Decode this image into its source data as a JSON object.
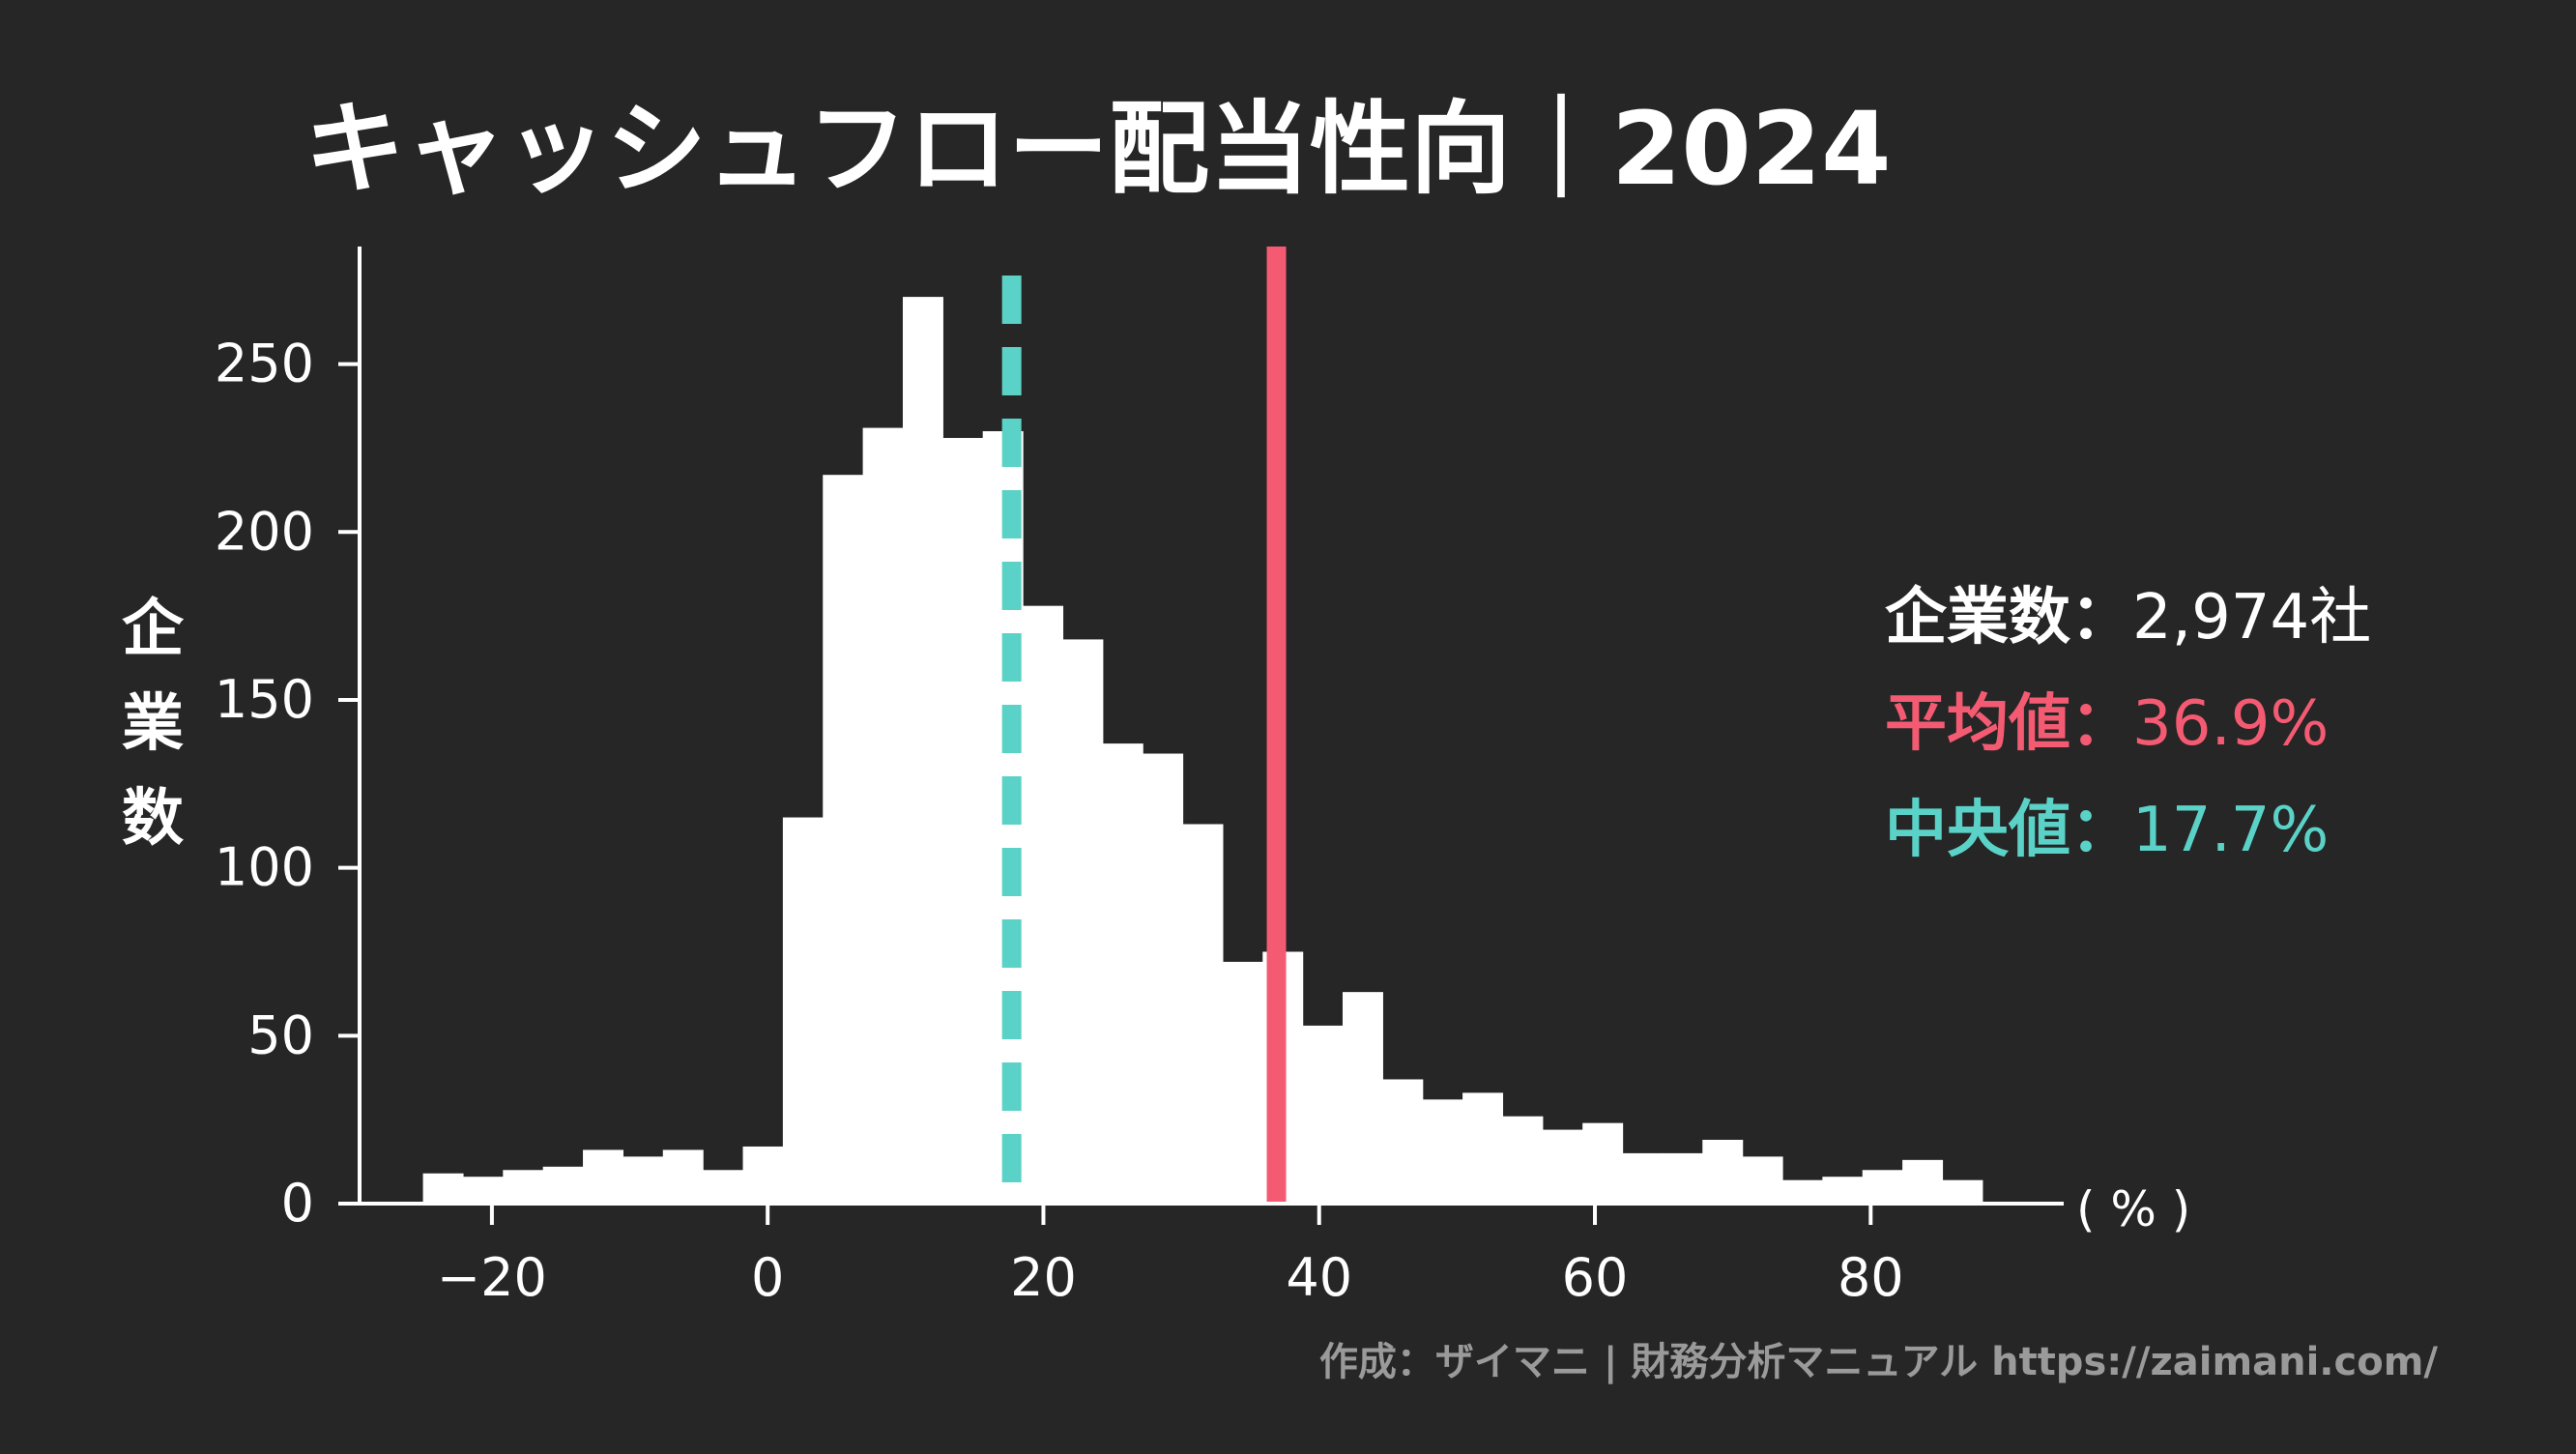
{
  "chart_data": {
    "type": "bar",
    "title": "キャッシュフロー配当性向｜2024",
    "xlabel": "",
    "x_unit_label": "( % )",
    "ylabel": "企業数",
    "xlim": [
      -31,
      94
    ],
    "ylim": [
      0,
      285
    ],
    "x_ticks": [
      -20,
      0,
      20,
      40,
      60,
      80
    ],
    "x_tick_labels": [
      "−20",
      "0",
      "20",
      "40",
      "60",
      "80"
    ],
    "y_ticks": [
      0,
      50,
      100,
      150,
      200,
      250
    ],
    "y_tick_labels": [
      "0",
      "50",
      "100",
      "150",
      "200",
      "250"
    ],
    "bin_width": 2.9,
    "bin_start": -25.0,
    "values": [
      9,
      8,
      10,
      11,
      16,
      14,
      16,
      10,
      17,
      115,
      217,
      231,
      270,
      228,
      230,
      178,
      168,
      137,
      134,
      113,
      72,
      75,
      53,
      63,
      37,
      31,
      33,
      26,
      22,
      24,
      15,
      15,
      19,
      14,
      7,
      8,
      10,
      13,
      7
    ],
    "mean": 36.9,
    "median": 17.7,
    "bar_color": "#ffffff",
    "mean_color": "#f45b73",
    "median_color": "#5bd2c7"
  },
  "stats": {
    "count_label": "企業数",
    "count_value": "2,974社",
    "mean_label": "平均値",
    "mean_value": "36.9%",
    "median_label": "中央値",
    "median_value": "17.7%",
    "separator": "："
  },
  "credit": "作成：ザイマニ | 財務分析マニュアル https://zaimani.com/"
}
